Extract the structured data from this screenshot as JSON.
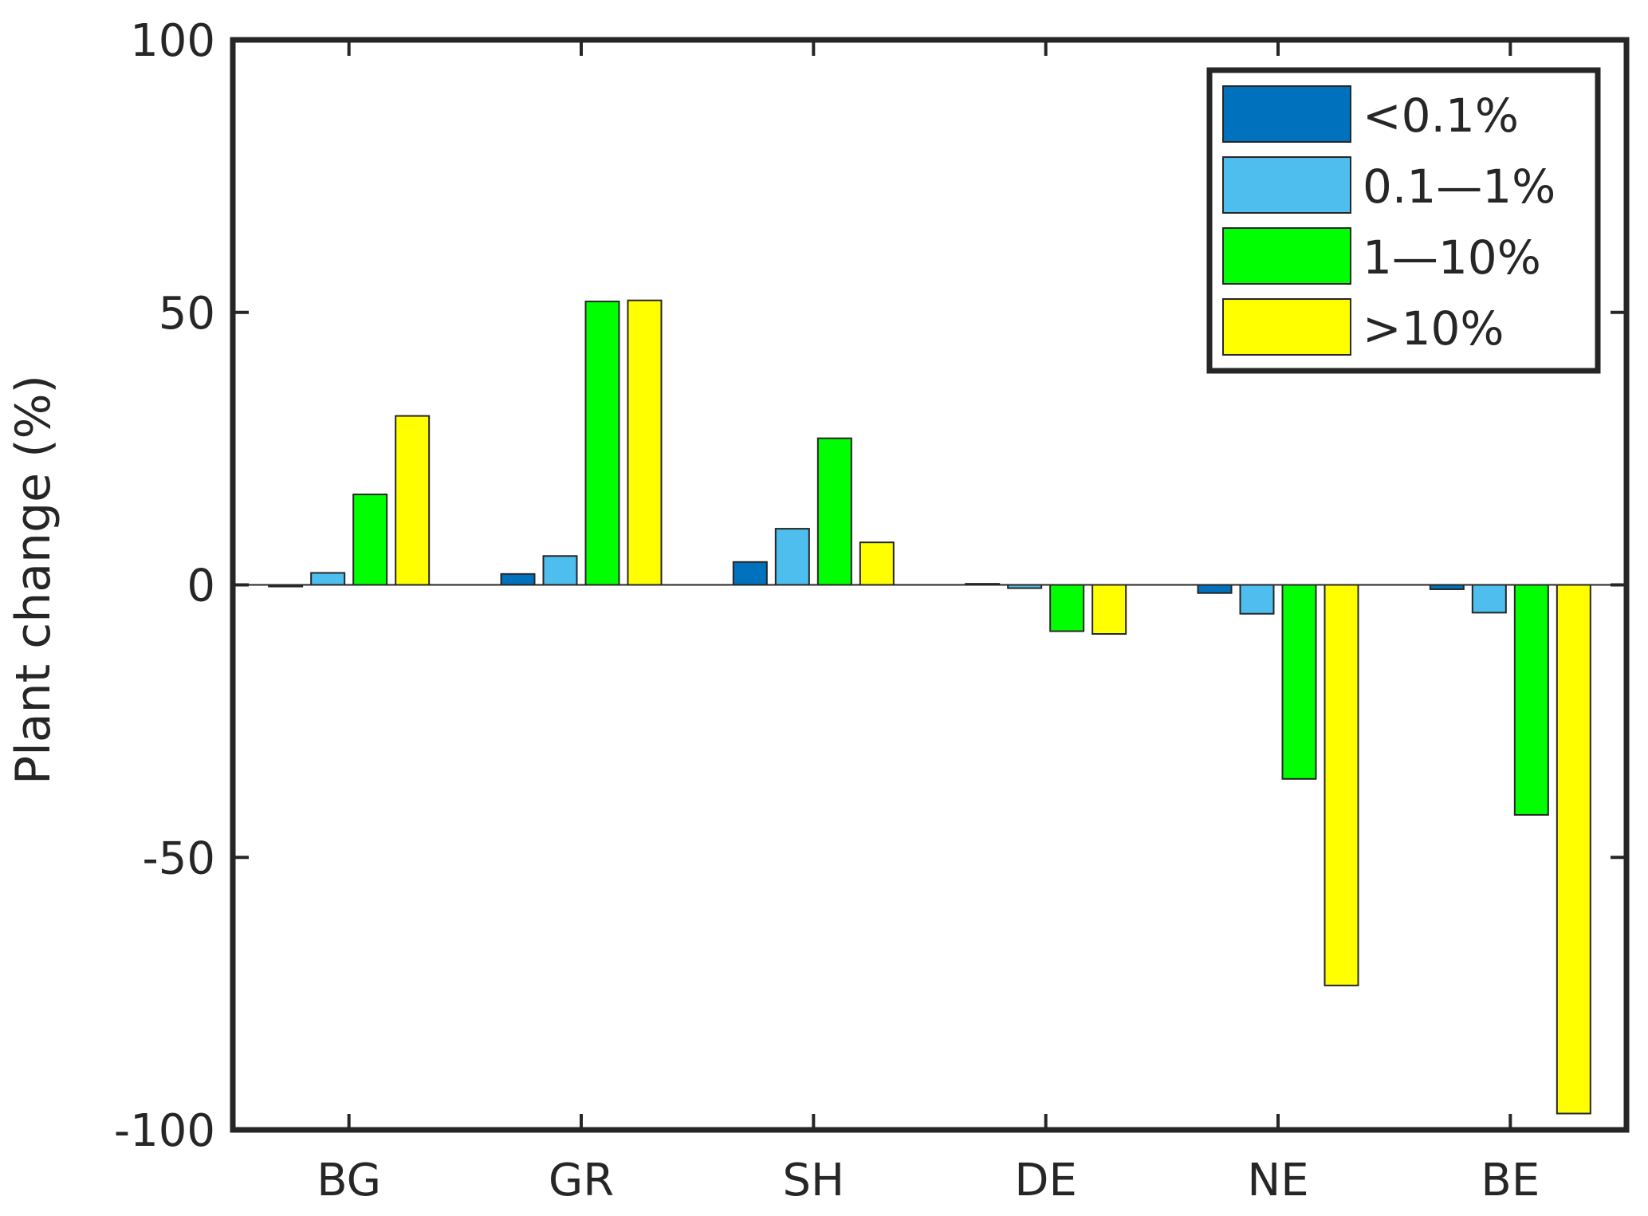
{
  "chart_data": {
    "type": "bar",
    "title": "",
    "xlabel": "",
    "ylabel": "Plant change (%)",
    "ylim": [
      -100,
      100
    ],
    "yticks": [
      100,
      50,
      0,
      -50,
      -100
    ],
    "ytick_labels": [
      "100",
      "50",
      "0",
      "-50",
      "-100"
    ],
    "categories": [
      "BG",
      "GR",
      "SH",
      "DE",
      "NE",
      "BE"
    ],
    "grid": false,
    "legend_position": "top-right",
    "series": [
      {
        "name": "<0.1%",
        "color": "#0072BD",
        "values": [
          -0.3,
          2,
          4.2,
          0.2,
          -1.5,
          -0.8
        ]
      },
      {
        "name": "0.1—1%",
        "color": "#4DBEEE",
        "values": [
          2.2,
          5.3,
          10.3,
          -0.6,
          -5.3,
          -5.1
        ]
      },
      {
        "name": "1—10%",
        "color": "#00FF00",
        "values": [
          16.6,
          52,
          26.9,
          -8.5,
          -35.6,
          -42.2
        ]
      },
      {
        "name": ">10%",
        "color": "#FFFF00",
        "values": [
          31,
          52.2,
          7.8,
          -9,
          -73.5,
          -97
        ]
      }
    ]
  }
}
